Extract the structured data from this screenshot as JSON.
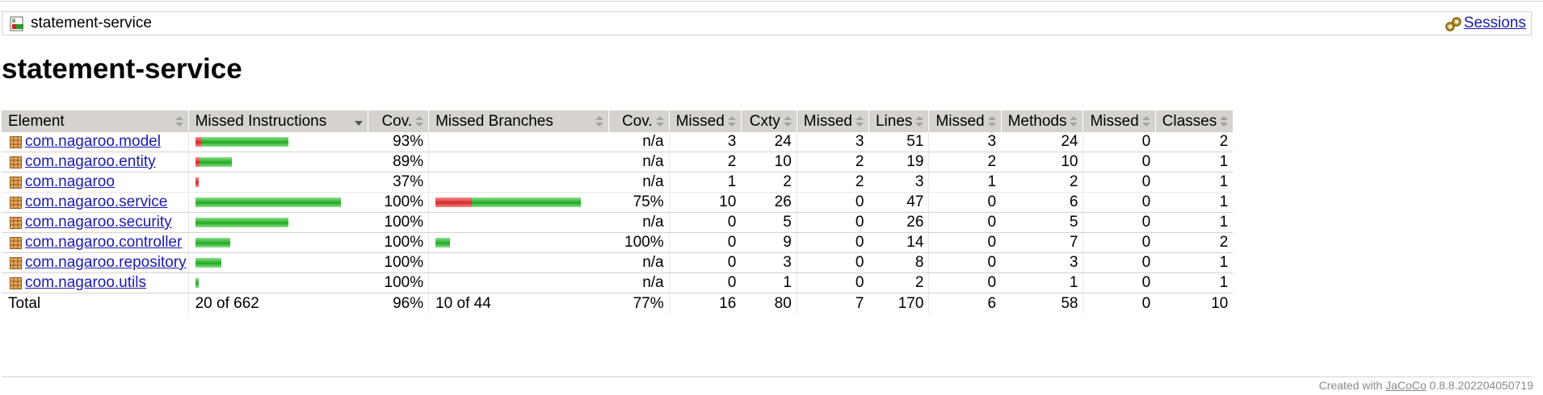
{
  "breadcrumb": {
    "title": "statement-service",
    "sessions_label": "Sessions",
    "icon": "report-icon",
    "sessions_icon": "sessions-icon"
  },
  "page": {
    "title": "statement-service"
  },
  "table": {
    "headers": {
      "element": "Element",
      "missed_instructions": "Missed Instructions",
      "cov_instructions": "Cov.",
      "missed_branches": "Missed Branches",
      "cov_branches": "Cov.",
      "missed_cxty": "Missed",
      "cxty": "Cxty",
      "missed_lines": "Missed",
      "lines": "Lines",
      "missed_methods": "Missed",
      "methods": "Methods",
      "missed_classes": "Missed",
      "classes": "Classes"
    },
    "rows": [
      {
        "name": "com.nagaroo.model",
        "instr_red": 0.04,
        "instr_green": 0.6,
        "instr_cov": "93%",
        "br_red": 0,
        "br_green": 0,
        "br_cov": "n/a",
        "missed_cxty": "3",
        "cxty": "24",
        "missed_lines": "3",
        "lines": "51",
        "missed_methods": "3",
        "methods": "24",
        "missed_classes": "0",
        "classes": "2"
      },
      {
        "name": "com.nagaroo.entity",
        "instr_red": 0.03,
        "instr_green": 0.22,
        "instr_cov": "89%",
        "br_red": 0,
        "br_green": 0,
        "br_cov": "n/a",
        "missed_cxty": "2",
        "cxty": "10",
        "missed_lines": "2",
        "lines": "19",
        "missed_methods": "2",
        "methods": "10",
        "missed_classes": "0",
        "classes": "1"
      },
      {
        "name": "com.nagaroo",
        "instr_red": 0.02,
        "instr_green": 0.0,
        "instr_cov": "37%",
        "br_red": 0,
        "br_green": 0,
        "br_cov": "n/a",
        "missed_cxty": "1",
        "cxty": "2",
        "missed_lines": "2",
        "lines": "3",
        "missed_methods": "1",
        "methods": "2",
        "missed_classes": "0",
        "classes": "1"
      },
      {
        "name": "com.nagaroo.service",
        "instr_red": 0.0,
        "instr_green": 1.0,
        "instr_cov": "100%",
        "br_red": 0.25,
        "br_green": 0.75,
        "br_cov": "75%",
        "missed_cxty": "10",
        "cxty": "26",
        "missed_lines": "0",
        "lines": "47",
        "missed_methods": "0",
        "methods": "6",
        "missed_classes": "0",
        "classes": "1"
      },
      {
        "name": "com.nagaroo.security",
        "instr_red": 0.0,
        "instr_green": 0.64,
        "instr_cov": "100%",
        "br_red": 0,
        "br_green": 0,
        "br_cov": "n/a",
        "missed_cxty": "0",
        "cxty": "5",
        "missed_lines": "0",
        "lines": "26",
        "missed_methods": "0",
        "methods": "5",
        "missed_classes": "0",
        "classes": "1"
      },
      {
        "name": "com.nagaroo.controller",
        "instr_red": 0.0,
        "instr_green": 0.24,
        "instr_cov": "100%",
        "br_red": 0,
        "br_green": 0.1,
        "br_cov": "100%",
        "missed_cxty": "0",
        "cxty": "9",
        "missed_lines": "0",
        "lines": "14",
        "missed_methods": "0",
        "methods": "7",
        "missed_classes": "0",
        "classes": "2"
      },
      {
        "name": "com.nagaroo.repository",
        "instr_red": 0.0,
        "instr_green": 0.18,
        "instr_cov": "100%",
        "br_red": 0,
        "br_green": 0,
        "br_cov": "n/a",
        "missed_cxty": "0",
        "cxty": "3",
        "missed_lines": "0",
        "lines": "8",
        "missed_methods": "0",
        "methods": "3",
        "missed_classes": "0",
        "classes": "1"
      },
      {
        "name": "com.nagaroo.utils",
        "instr_red": 0.0,
        "instr_green": 0.02,
        "instr_cov": "100%",
        "br_red": 0,
        "br_green": 0,
        "br_cov": "n/a",
        "missed_cxty": "0",
        "cxty": "1",
        "missed_lines": "0",
        "lines": "2",
        "missed_methods": "0",
        "methods": "1",
        "missed_classes": "0",
        "classes": "1"
      }
    ],
    "total": {
      "label": "Total",
      "instr": "20 of 662",
      "instr_cov": "96%",
      "br": "10 of 44",
      "br_cov": "77%",
      "missed_cxty": "16",
      "cxty": "80",
      "missed_lines": "7",
      "lines": "170",
      "missed_methods": "6",
      "methods": "58",
      "missed_classes": "0",
      "classes": "10"
    }
  },
  "footer": {
    "prefix": "Created with ",
    "link": "JaCoCo",
    "version": " 0.8.8.202204050719"
  },
  "colors": {
    "header_bg": "#d6d3ce",
    "link": "#1a1ab0",
    "bar_red": "#d42a2a",
    "bar_green": "#22a922"
  }
}
